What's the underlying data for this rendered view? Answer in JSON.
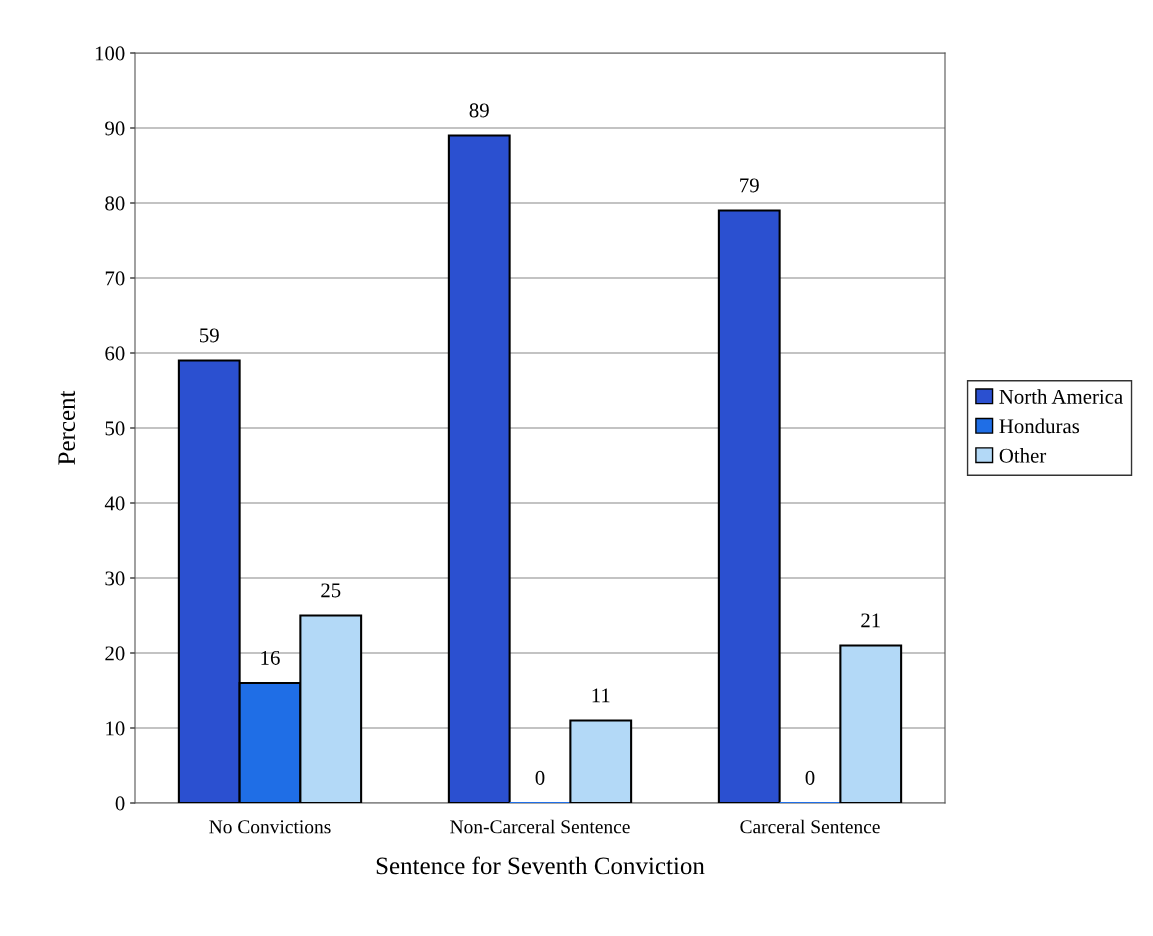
{
  "chart_data": {
    "type": "bar",
    "xlabel": "Sentence for Seventh Conviction",
    "ylabel": "Percent",
    "categories": [
      "No Convictions",
      "Non-Carceral Sentence",
      "Carceral Sentence"
    ],
    "series": [
      {
        "name": "North America",
        "color": "#2b50d0",
        "values": [
          59,
          89,
          79
        ]
      },
      {
        "name": "Honduras",
        "color": "#1f6ee6",
        "values": [
          16,
          0,
          0
        ]
      },
      {
        "name": "Other",
        "color": "#b3d9f7",
        "values": [
          25,
          11,
          21
        ]
      }
    ],
    "ylim": [
      0,
      100
    ],
    "yticks": [
      0,
      10,
      20,
      30,
      40,
      50,
      60,
      70,
      80,
      90,
      100
    ],
    "grid": "y",
    "legend": "right",
    "data_labels": true
  }
}
